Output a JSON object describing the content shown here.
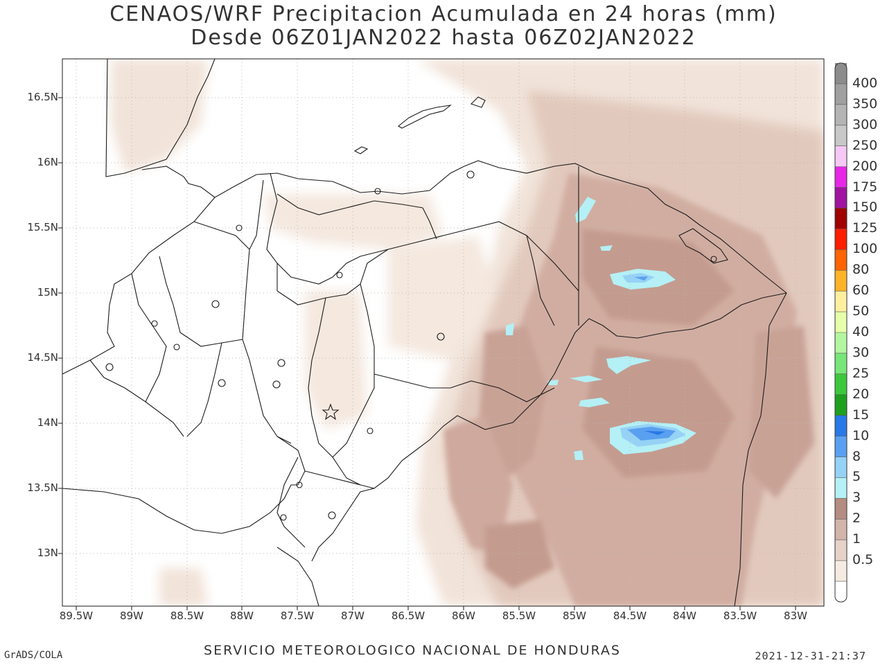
{
  "title_line1": "CENAOS/WRF Precipitacion Acumulada en 24 horas (mm)",
  "title_line2": "Desde 06Z01JAN2022 hasta 06Z02JAN2022",
  "lat_labels": [
    "16.5N",
    "16N",
    "15.5N",
    "15N",
    "14.5N",
    "14N",
    "13.5N",
    "13N"
  ],
  "lon_labels": [
    "89.5W",
    "89W",
    "88.5W",
    "88W",
    "87.5W",
    "87W",
    "86.5W",
    "86W",
    "85.5W",
    "85W",
    "84.5W",
    "84W",
    "83.5W",
    "83W"
  ],
  "colorbar": {
    "labels": [
      "400",
      "350",
      "300",
      "250",
      "200",
      "175",
      "150",
      "125",
      "100",
      "80",
      "60",
      "50",
      "40",
      "30",
      "25",
      "20",
      "15",
      "10",
      "8",
      "5",
      "3",
      "2",
      "1",
      "0.5"
    ],
    "colors": [
      "#8c8c8c",
      "#a0a0a0",
      "#b4b4b4",
      "#c8c8c8",
      "#f5c8f5",
      "#e628e6",
      "#a014a0",
      "#a00000",
      "#ff1e00",
      "#ff6400",
      "#ffb428",
      "#fff0a0",
      "#e6ffaa",
      "#b4f5a0",
      "#78e678",
      "#3cc83c",
      "#1ea01e",
      "#2878e6",
      "#5aa0f0",
      "#96d2f5",
      "#b4f0f5",
      "#b48c82",
      "#d2b4a8",
      "#e6d2c8",
      "#f5ebe1",
      "#ffffff"
    ]
  },
  "footer": {
    "left": "GrADS/COLA",
    "center": "SERVICIO METEOROLOGICO NACIONAL DE HONDURAS",
    "right": "2021-12-31-21:37"
  }
}
